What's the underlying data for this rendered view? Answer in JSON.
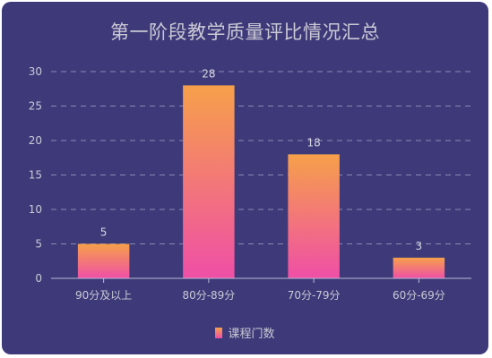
{
  "chart_data": {
    "type": "bar",
    "title": "第一阶段教学质量评比情况汇总",
    "categories": [
      "90分及以上",
      "80分-89分",
      "70分-79分",
      "60分-69分"
    ],
    "series": [
      {
        "name": "课程门数",
        "values": [
          5,
          28,
          18,
          3
        ]
      }
    ],
    "ylim": [
      0,
      30
    ],
    "yticks": [
      0,
      5,
      10,
      15,
      20,
      25,
      30
    ],
    "grid": true,
    "legend": "bottom",
    "colors": {
      "background": "#3e3a7a",
      "bar_top": "#f6a04a",
      "bar_bottom": "#ef4fa6",
      "text": "#c9c9d4",
      "grid": "#8a88b3"
    }
  }
}
